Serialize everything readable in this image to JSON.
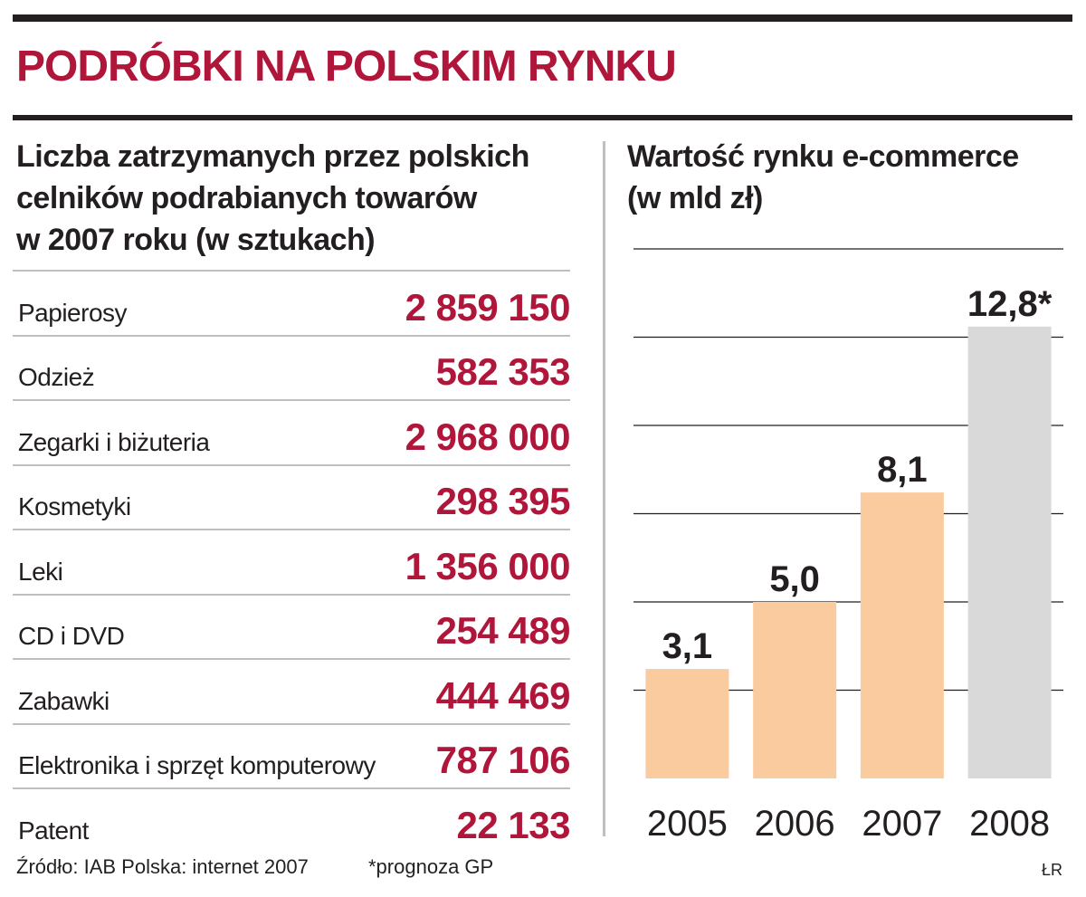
{
  "title": "PODRÓBKI NA POLSKIM RYNKU",
  "left_panel": {
    "title_lines": [
      "Liczba zatrzymanych przez polskich",
      "celników podrabianych towarów",
      "w 2007 roku (w sztukach)"
    ],
    "rows": [
      {
        "label": "Papierosy",
        "value": "2 859 150"
      },
      {
        "label": "Odzież",
        "value": "582 353"
      },
      {
        "label": "Zegarki i biżuteria",
        "value": "2 968 000"
      },
      {
        "label": "Kosmetyki",
        "value": "298 395"
      },
      {
        "label": "Leki",
        "value": "1 356 000"
      },
      {
        "label": "CD i DVD",
        "value": "254 489"
      },
      {
        "label": "Zabawki",
        "value": "444 469"
      },
      {
        "label": "Elektronika i sprzęt komputerowy",
        "value": "787 106"
      },
      {
        "label": "Patent",
        "value": "22 133"
      }
    ]
  },
  "right_panel": {
    "title_lines": [
      "Wartość rynku e-commerce",
      "(w mld zł)"
    ]
  },
  "chart_data": {
    "type": "bar",
    "categories": [
      "2005",
      "2006",
      "2007",
      "2008"
    ],
    "values": [
      3.1,
      5.0,
      8.1,
      12.8
    ],
    "value_labels": [
      "3,1",
      "5,0",
      "8,1",
      "12,8*"
    ],
    "forecast": [
      false,
      false,
      false,
      true
    ],
    "title": "Wartość rynku e-commerce (w mld zł)",
    "xlabel": "",
    "ylabel": "",
    "ylim": [
      0,
      15
    ],
    "grid": true,
    "colors": {
      "actual": "#fbcba0",
      "forecast": "#d9d9d9",
      "gridline": "#231f20"
    }
  },
  "footer": {
    "source": "Źródło: IAB Polska: internet 2007",
    "note": "*prognoza GP",
    "initials": "ŁR"
  },
  "colors": {
    "accent": "#b0153a",
    "text": "#231f20",
    "rule": "#bfbfbf"
  }
}
